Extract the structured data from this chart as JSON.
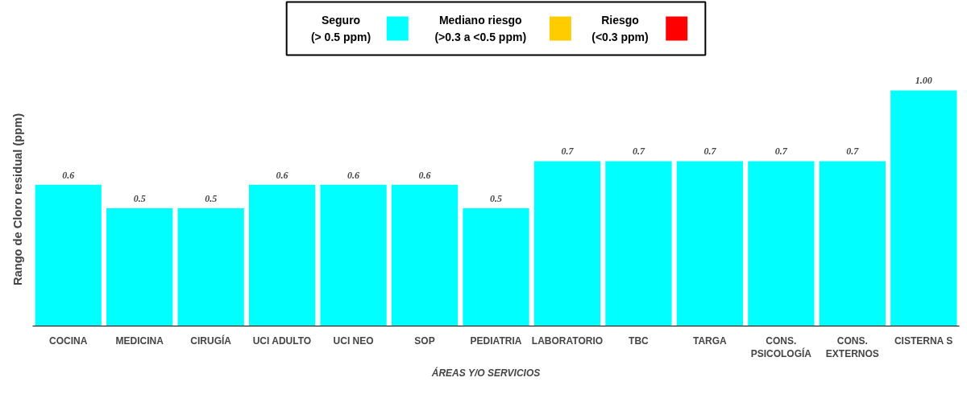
{
  "chart_data": {
    "type": "bar",
    "ylabel": "Rango de Cloro residual (ppm)",
    "categories": [
      "COCINA",
      "MEDICINA",
      "CIRUGÍA",
      "UCI ADULTO",
      "UCI NEO",
      "SOP",
      "PEDIATRIA",
      "LABORATORIO",
      "TBC",
      "TARGA",
      "CONS.\nPSICOLOGÍA",
      "CONS.\nEXTERNOS",
      "CISTERNA S"
    ],
    "series": [
      {
        "name": "ÁREAS Y/O SERVICIOS",
        "color": "#00ffff",
        "values": [
          0.6,
          0.5,
          0.5,
          0.6,
          0.6,
          0.6,
          0.5,
          0.7,
          0.7,
          0.7,
          0.7,
          0.7,
          1.0
        ],
        "value_labels": [
          "0.6",
          "0.5",
          "0.5",
          "0.6",
          "0.6",
          "0.6",
          "0.5",
          "0.7",
          "0.7",
          "0.7",
          "0.7",
          "0.7",
          "1.00"
        ]
      },
      {
        "name": "Seguro\n(> 0.5 ppm)",
        "color": "#00ffff",
        "values": [
          null,
          null,
          null,
          null,
          null,
          null,
          null,
          null,
          null,
          null,
          null,
          null,
          null
        ]
      },
      {
        "name": "Mediano riesgo\n(>0.3 a <0.5 ppm)",
        "color": "#ffcc00",
        "values": [
          null,
          null,
          null,
          null,
          null,
          null,
          null,
          null,
          null,
          null,
          null,
          null,
          null
        ]
      },
      {
        "name": "Riesgo\n(<0.3 ppm)",
        "color": "#ff0000",
        "values": [
          null,
          null,
          null,
          null,
          null,
          null,
          null,
          null,
          null,
          null,
          null,
          null,
          null
        ]
      }
    ],
    "tick_labels": "x",
    "legend": "top"
  }
}
